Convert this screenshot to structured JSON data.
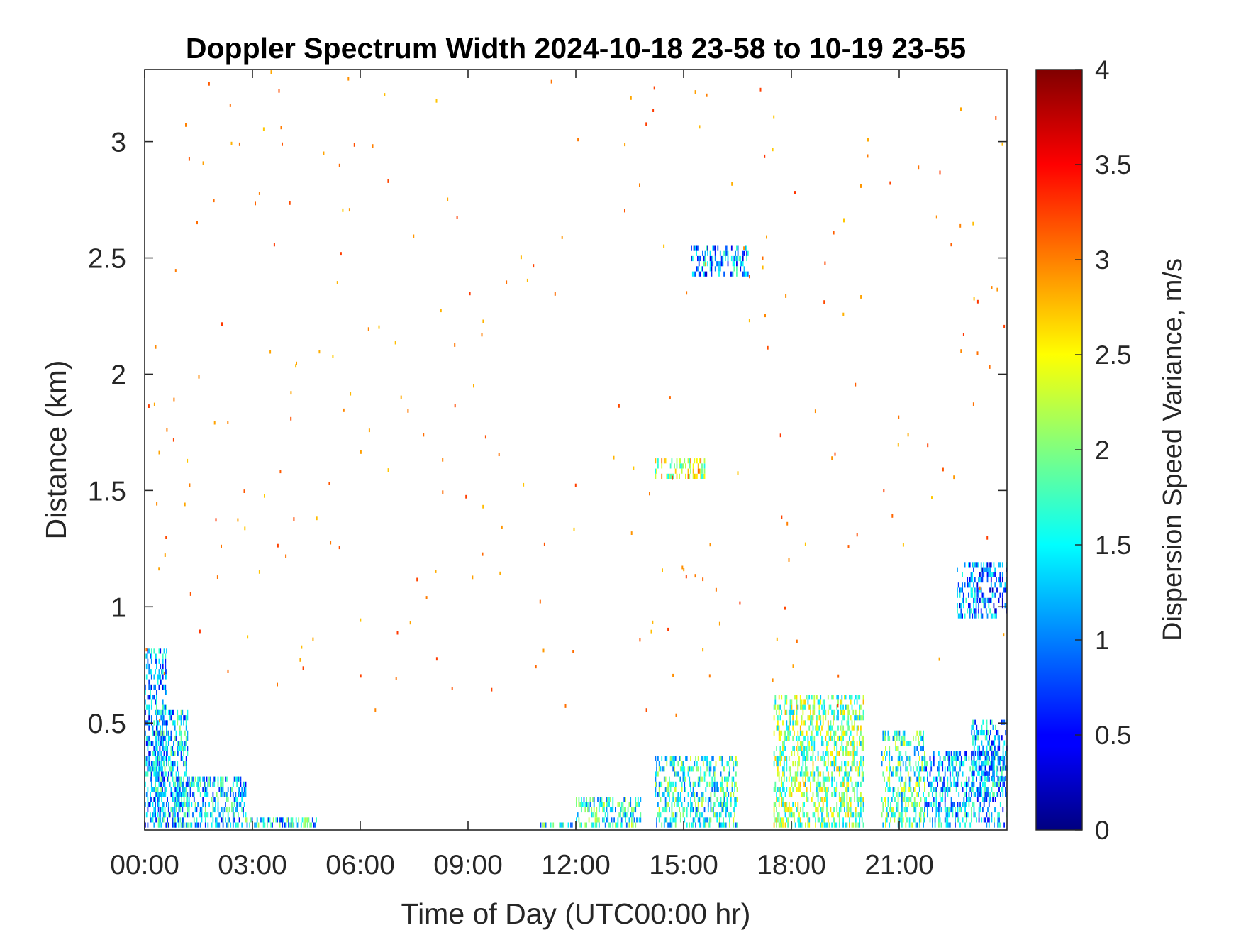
{
  "chart_data": {
    "type": "heatmap",
    "title": "Doppler Spectrum Width 2024-10-18 23-58 to 10-19 23-55",
    "xlabel": "Time of Day (UTC00:00 hr)",
    "ylabel": "Distance (km)",
    "x_ticks": [
      "00:00",
      "03:00",
      "06:00",
      "09:00",
      "12:00",
      "15:00",
      "18:00",
      "21:00"
    ],
    "x_tick_hours": [
      0,
      3,
      6,
      9,
      12,
      15,
      18,
      21
    ],
    "xlim_hours": [
      0,
      24
    ],
    "y_ticks": [
      "0.5",
      "1",
      "1.5",
      "2",
      "2.5",
      "3"
    ],
    "y_tick_values": [
      0.5,
      1,
      1.5,
      2,
      2.5,
      3
    ],
    "ylim": [
      0.04,
      3.31
    ],
    "grid": false,
    "colorbar": {
      "label": "Dispersion Speed Variance, m/s",
      "ticks": [
        "0",
        "0.5",
        "1",
        "1.5",
        "2",
        "2.5",
        "3",
        "3.5",
        "4"
      ],
      "tick_values": [
        0,
        0.5,
        1,
        1.5,
        2,
        2.5,
        3,
        3.5,
        4
      ],
      "range": [
        0,
        4
      ],
      "colormap": "jet"
    },
    "regions": [
      {
        "t0": 0.0,
        "t1": 0.6,
        "h0": 0.05,
        "h1": 0.8,
        "v": 1.1
      },
      {
        "t0": 0.3,
        "t1": 1.2,
        "h0": 0.05,
        "h1": 0.55,
        "v": 1.3
      },
      {
        "t0": 0.8,
        "t1": 2.8,
        "h0": 0.05,
        "h1": 0.26,
        "v": 1.3
      },
      {
        "t0": 2.8,
        "t1": 4.8,
        "h0": 0.05,
        "h1": 0.09,
        "v": 1.4
      },
      {
        "t0": 10.9,
        "t1": 12.0,
        "h0": 0.05,
        "h1": 0.07,
        "v": 1.5
      },
      {
        "t0": 12.0,
        "t1": 13.8,
        "h0": 0.05,
        "h1": 0.18,
        "v": 1.6
      },
      {
        "t0": 14.2,
        "t1": 16.5,
        "h0": 0.05,
        "h1": 0.34,
        "v": 1.6
      },
      {
        "t0": 17.5,
        "t1": 20.0,
        "h0": 0.05,
        "h1": 0.62,
        "v": 2.0
      },
      {
        "t0": 20.5,
        "t1": 21.7,
        "h0": 0.05,
        "h1": 0.45,
        "v": 1.7
      },
      {
        "t0": 21.7,
        "t1": 24.0,
        "h0": 0.05,
        "h1": 0.38,
        "v": 1.2
      },
      {
        "t0": 23.0,
        "t1": 24.0,
        "h0": 0.25,
        "h1": 0.5,
        "v": 1.2
      },
      {
        "t0": 22.6,
        "t1": 24.0,
        "h0": 0.95,
        "h1": 1.18,
        "v": 1.0
      },
      {
        "t0": 15.2,
        "t1": 16.8,
        "h0": 2.42,
        "h1": 2.55,
        "v": 1.1
      },
      {
        "t0": 14.2,
        "t1": 15.6,
        "h0": 1.55,
        "h1": 1.63,
        "v": 2.3
      }
    ],
    "scattered_returns": {
      "height_range": [
        0.5,
        3.3
      ],
      "typical_value": 3.0
    }
  }
}
